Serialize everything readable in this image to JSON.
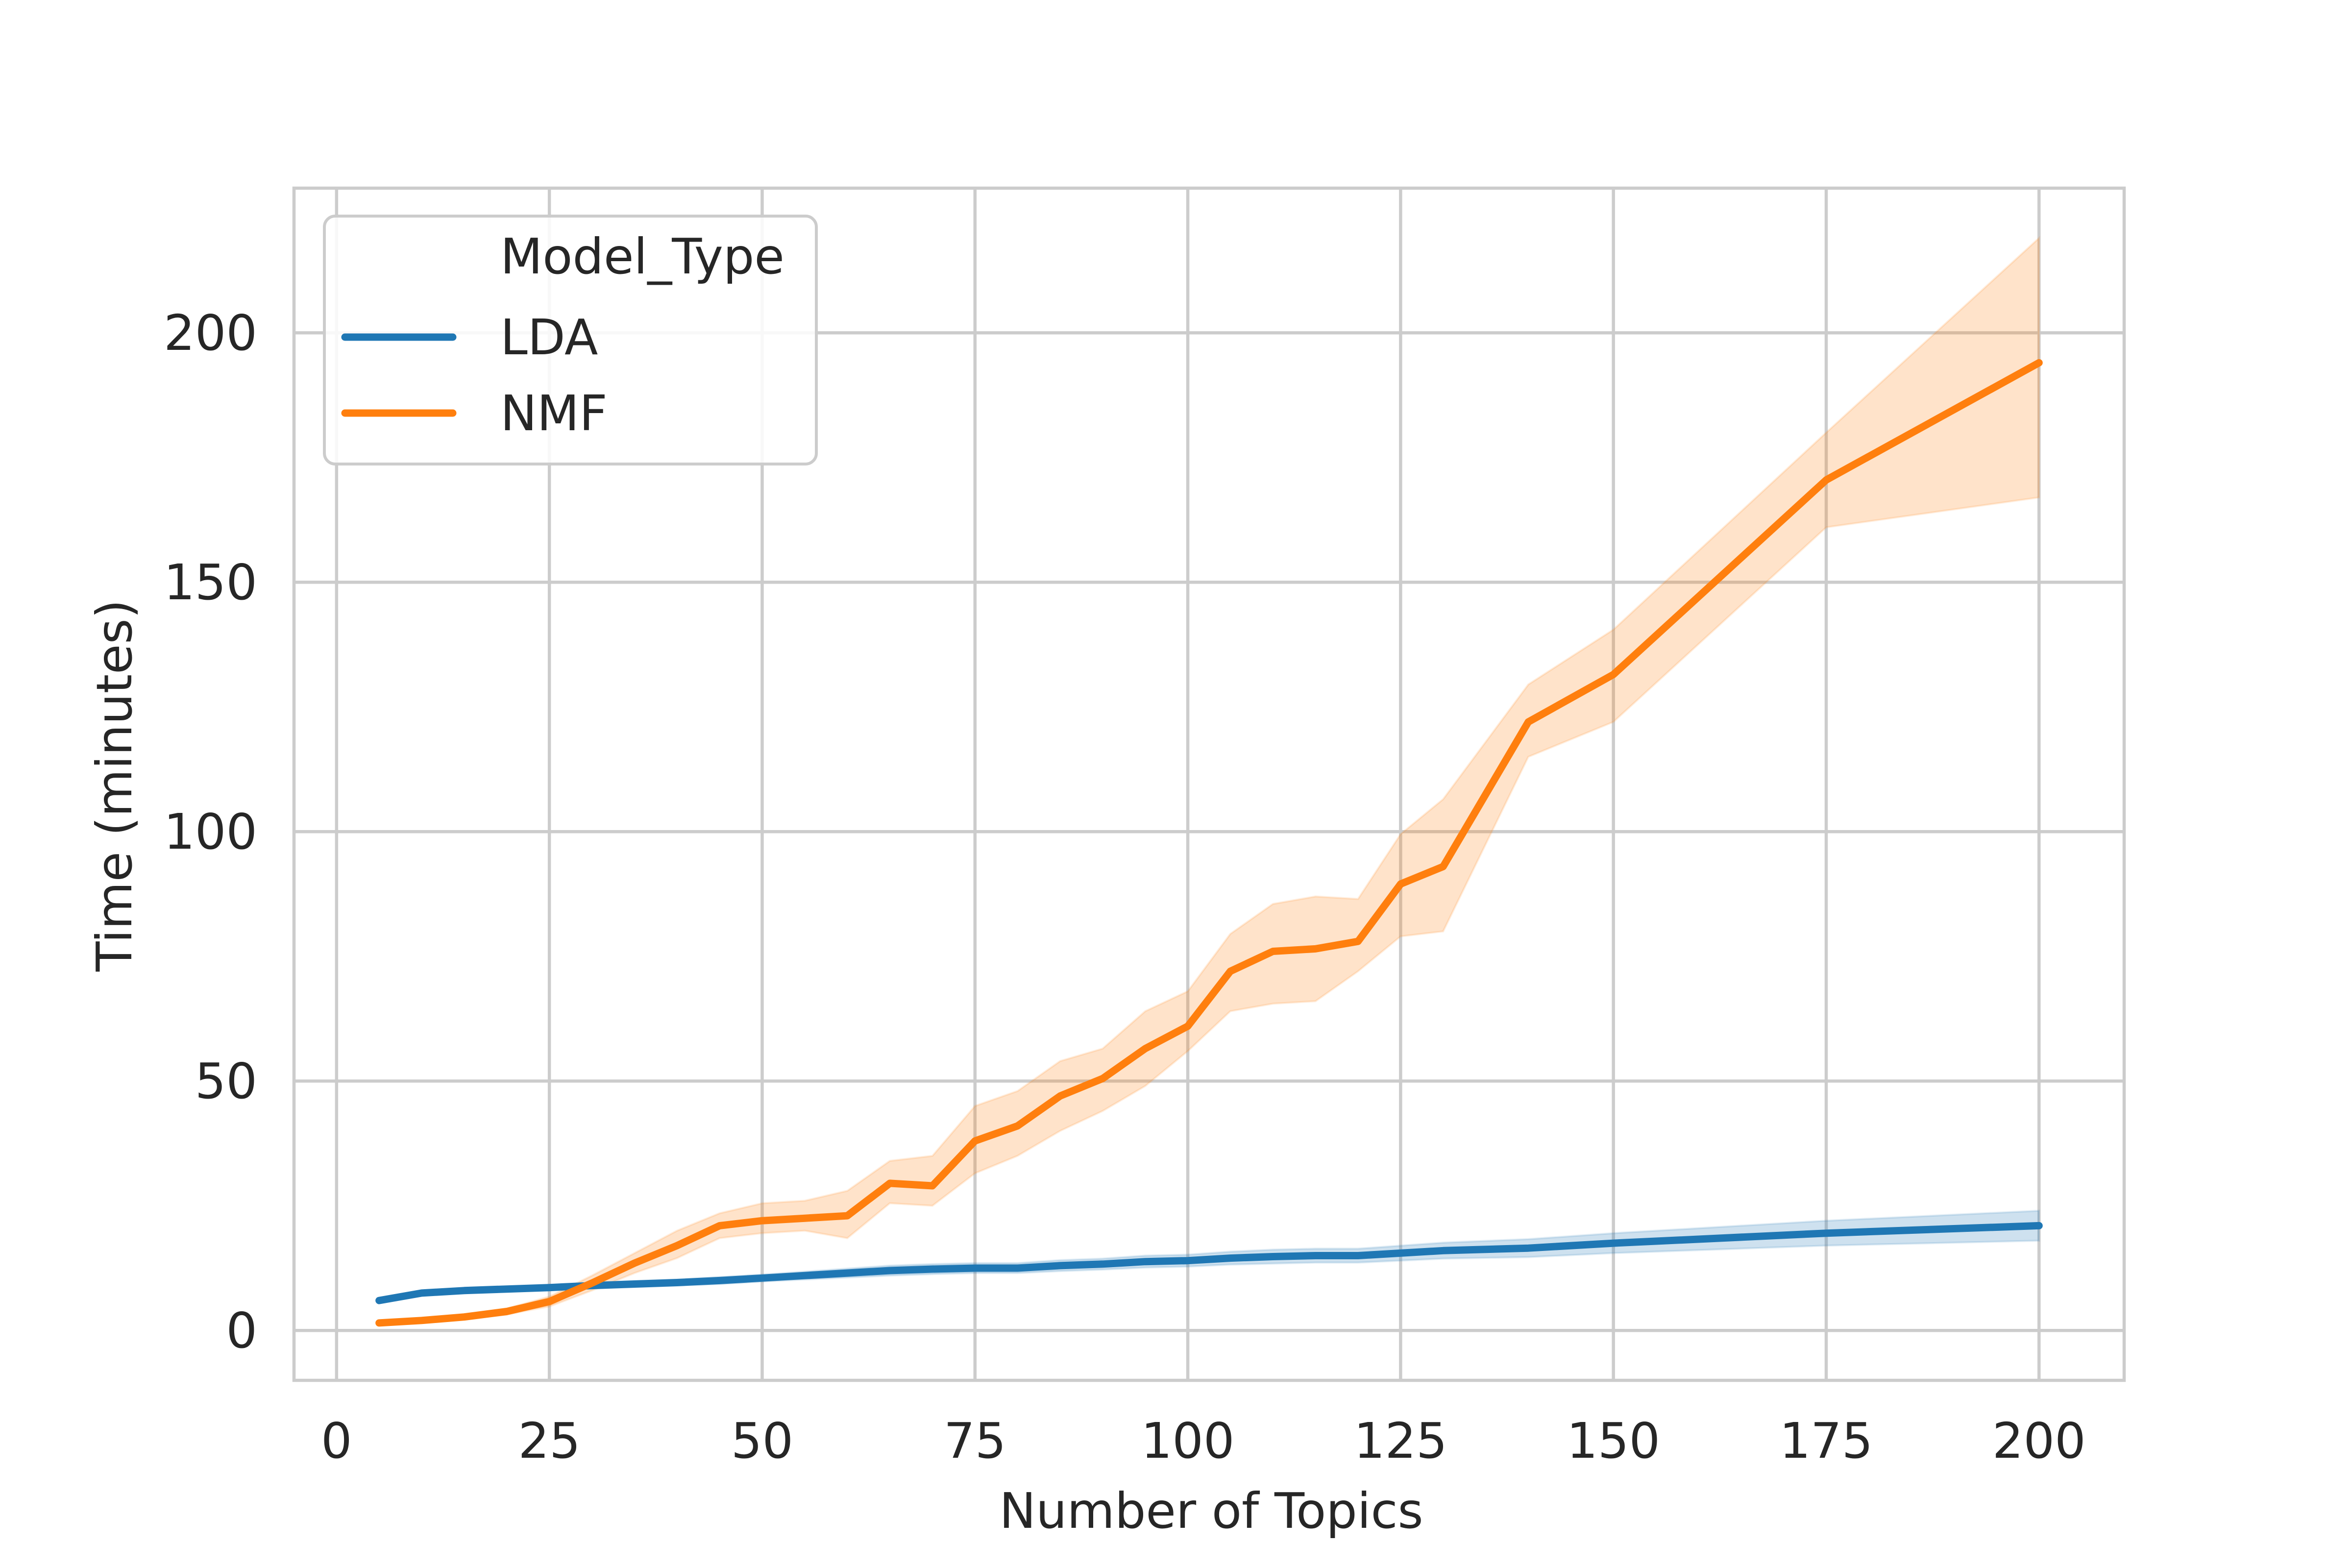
{
  "chart_data": {
    "type": "line",
    "title": "",
    "xlabel": "Number of Topics",
    "ylabel": "Time (minutes)",
    "xlim": [
      -5,
      210
    ],
    "ylim": [
      -10,
      229
    ],
    "xticks": [
      0,
      25,
      50,
      75,
      100,
      125,
      150,
      175,
      200
    ],
    "xtick_labels": [
      "0",
      "25",
      "50",
      "75",
      "100",
      "125",
      "150",
      "175",
      "200"
    ],
    "yticks": [
      0,
      50,
      100,
      150,
      200
    ],
    "ytick_labels": [
      "0",
      "50",
      "100",
      "150",
      "200"
    ],
    "grid": true,
    "legend": {
      "title": "Model_Type",
      "placement": "top-left"
    },
    "x": [
      5,
      10,
      15,
      20,
      25,
      30,
      35,
      40,
      45,
      50,
      55,
      60,
      65,
      70,
      75,
      80,
      85,
      90,
      95,
      100,
      105,
      110,
      115,
      120,
      125,
      130,
      140,
      150,
      175,
      200
    ],
    "series": [
      {
        "name": "LDA",
        "color": "#1f77b4",
        "values": [
          6,
          7.5,
          8,
          8.3,
          8.6,
          9,
          9.3,
          9.6,
          10,
          10.5,
          11,
          11.5,
          12,
          12.3,
          12.5,
          12.5,
          13,
          13.3,
          13.8,
          14,
          14.5,
          14.8,
          15,
          15,
          15.5,
          16,
          16.5,
          17.5,
          19.5,
          21
        ],
        "ci_lower": [
          5.5,
          7,
          7.5,
          7.8,
          8.1,
          8.5,
          8.7,
          9,
          9.3,
          9.8,
          10.2,
          10.6,
          11,
          11.3,
          11.5,
          11.5,
          11.9,
          12.2,
          12.6,
          12.8,
          13.2,
          13.4,
          13.6,
          13.6,
          14,
          14.4,
          14.7,
          15.5,
          17,
          18
        ],
        "ci_upper": [
          6.5,
          8,
          8.5,
          8.8,
          9.1,
          9.5,
          9.9,
          10.2,
          10.7,
          11.2,
          11.8,
          12.4,
          13,
          13.3,
          13.5,
          13.5,
          14.1,
          14.4,
          15,
          15.2,
          15.8,
          16.2,
          16.4,
          16.4,
          17,
          17.6,
          18.3,
          19.5,
          22,
          24
        ]
      },
      {
        "name": "NMF",
        "color": "#ff7f0e",
        "values": [
          1.5,
          2,
          2.7,
          3.8,
          5.8,
          9.5,
          13.5,
          17,
          21,
          22,
          22.5,
          23,
          29.5,
          29,
          38,
          41,
          47,
          50.5,
          56.5,
          61,
          72,
          76,
          76.5,
          78,
          89.5,
          93,
          122,
          131.5,
          170.5,
          194
        ],
        "ci_lower": [
          1,
          1.5,
          2.2,
          3.2,
          4.8,
          8,
          11.5,
          14.5,
          18.5,
          19.5,
          20,
          18.5,
          25.5,
          25,
          31.5,
          35,
          40,
          44,
          49,
          56,
          64,
          65.5,
          66,
          72,
          79,
          80,
          115,
          122,
          161,
          167
        ],
        "ci_upper": [
          2,
          2.5,
          3.2,
          4.4,
          6.8,
          11,
          15.5,
          20,
          23.5,
          25.5,
          26,
          28,
          34,
          35,
          45,
          48,
          54,
          56.5,
          64,
          68,
          79.5,
          85.5,
          87,
          86.5,
          99.5,
          106.5,
          129.5,
          140.5,
          180,
          219
        ]
      }
    ]
  }
}
